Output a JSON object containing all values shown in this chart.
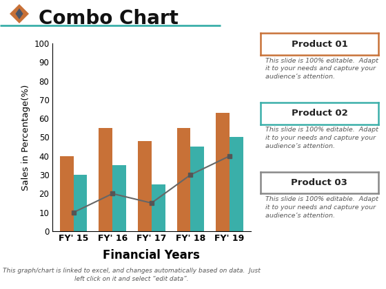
{
  "title": "Combo Chart",
  "title_fontsize": 20,
  "title_color": "#111111",
  "xlabel": "Financial Years",
  "ylabel": "Sales in Percentage(%)",
  "xlabel_fontsize": 12,
  "ylabel_fontsize": 9.5,
  "categories": [
    "FY' 15",
    "FY' 16",
    "FY' 17",
    "FY' 18",
    "FY' 19"
  ],
  "bar1_values": [
    40,
    55,
    48,
    55,
    63
  ],
  "bar2_values": [
    30,
    35,
    25,
    45,
    50
  ],
  "line_values": [
    10,
    20,
    15,
    30,
    40
  ],
  "bar1_color": "#C87137",
  "bar2_color": "#3AAFA9",
  "line_color": "#666666",
  "line_marker": "s",
  "line_markersize": 5,
  "line_marker_color": "#555555",
  "ylim": [
    0,
    100
  ],
  "yticks": [
    0,
    10,
    20,
    30,
    40,
    50,
    60,
    70,
    80,
    90,
    100
  ],
  "background_color": "#FFFFFF",
  "plot_bg_color": "#FFFFFF",
  "bar_width": 0.35,
  "legend_configs": [
    {
      "title": "Product 01",
      "text": "This slide is 100% editable.  Adapt\nit to your needs and capture your\naudience’s attention.",
      "border": "#C87137"
    },
    {
      "title": "Product 02",
      "text": "This slide is 100% editable.  Adapt\nit to your needs and capture your\naudience’s attention.",
      "border": "#3AAFA9"
    },
    {
      "title": "Product 03",
      "text": "This slide is 100% editable.  Adapt\nit to your needs and capture your\naudience’s attention.",
      "border": "#888888"
    }
  ],
  "footer_text": "This graph/chart is linked to excel, and changes automatically based on data.  Just\nleft click on it and select “edit data”.",
  "diamond_orange": "#C87137",
  "diamond_gray": "#4A5568",
  "header_line_color": "#3AAFA9"
}
